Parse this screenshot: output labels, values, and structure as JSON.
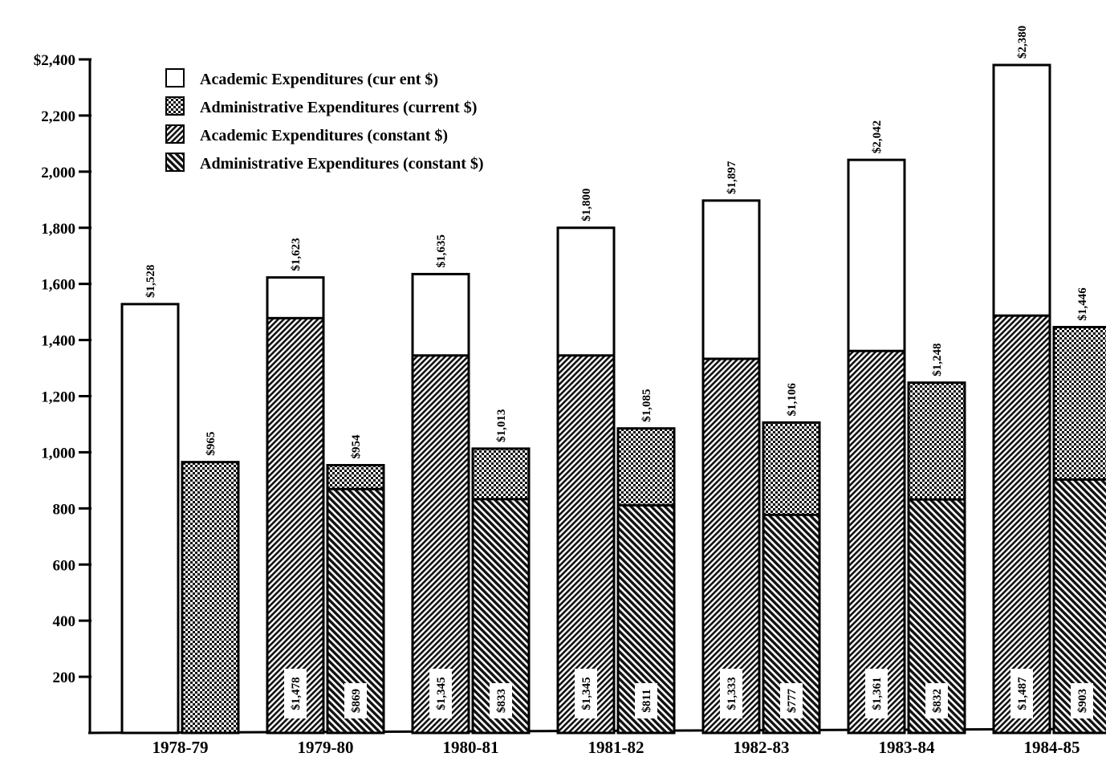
{
  "chart_data": {
    "type": "bar",
    "title": "",
    "xlabel": "",
    "ylabel": "",
    "ylim": [
      0,
      2400
    ],
    "yticks": [
      200,
      400,
      600,
      800,
      1000,
      1200,
      1400,
      1600,
      1800,
      2000,
      2200,
      2400
    ],
    "ytick_labels": [
      "200",
      "400",
      "600",
      "800",
      "1,000",
      "1,200",
      "1,400",
      "1,600",
      "1,800",
      "2,000",
      "2,200",
      "$2,400"
    ],
    "categories": [
      "1978-79",
      "1979-80",
      "1980-81",
      "1981-82",
      "1982-83",
      "1983-84",
      "1984-85"
    ],
    "legend_position": "top-left",
    "grid": false,
    "series": [
      {
        "name": "Academic Expenditures (cur ent $)",
        "pattern": "empty",
        "values": [
          1528,
          1623,
          1635,
          1800,
          1897,
          2042,
          2380
        ],
        "labels": [
          "$1,528",
          "$1,623",
          "$1,635",
          "$1,800",
          "$1,897",
          "$2,042",
          "$2,380"
        ]
      },
      {
        "name": "Administrative Expenditures (current $)",
        "pattern": "crosshatch",
        "values": [
          965,
          954,
          1013,
          1085,
          1106,
          1248,
          1446
        ],
        "labels": [
          "$965",
          "$954",
          "$1,013",
          "$1,085",
          "$1,106",
          "$1,248",
          "$1,446"
        ]
      },
      {
        "name": "Academic Expenditures (constant $)",
        "pattern": "diag-dense",
        "values": [
          null,
          1478,
          1345,
          1345,
          1333,
          1361,
          1487
        ],
        "labels": [
          "",
          "$1,478",
          "$1,345",
          "$1,345",
          "$1,333",
          "$1,361",
          "$1,487"
        ]
      },
      {
        "name": "Administrative Expenditures (constant $)",
        "pattern": "diag-wide",
        "values": [
          null,
          869,
          833,
          811,
          777,
          832,
          903
        ],
        "labels": [
          "",
          "$869",
          "$833",
          "$811",
          "$777",
          "$832",
          "$903"
        ]
      }
    ]
  }
}
